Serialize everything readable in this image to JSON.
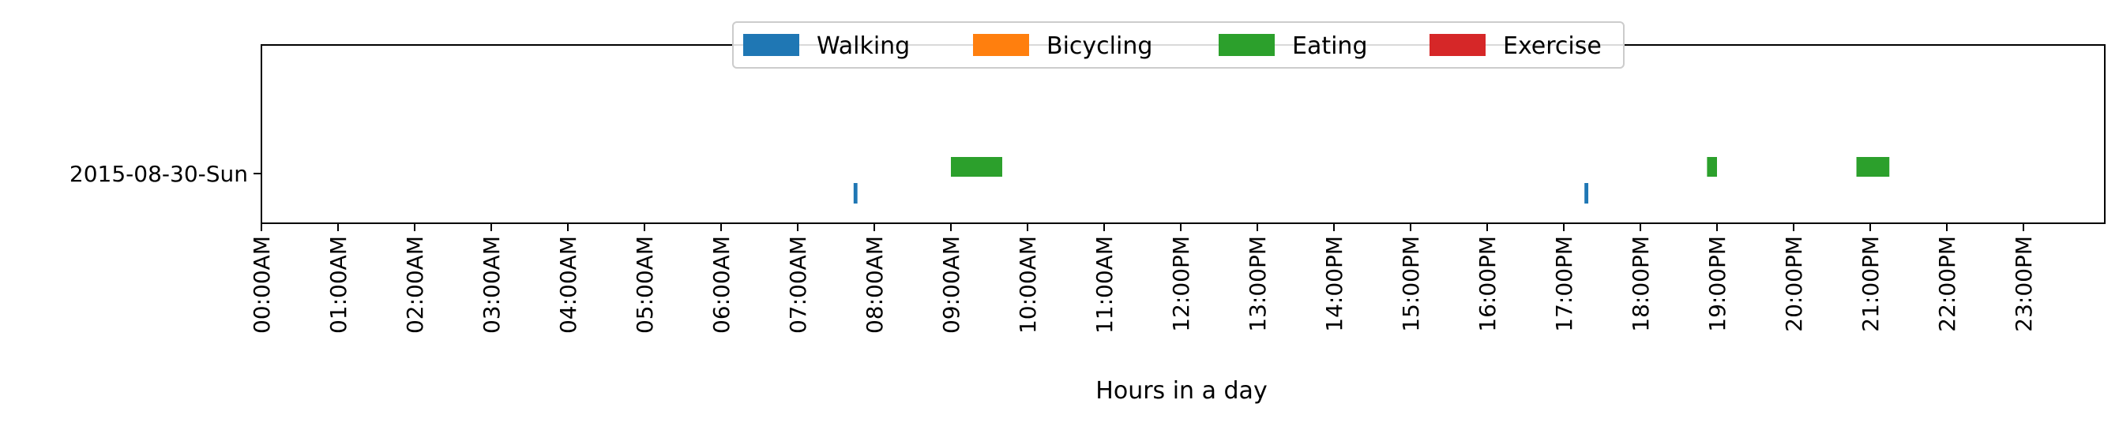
{
  "chart_data": {
    "type": "timeline",
    "xlabel": "Hours in a day",
    "xlim": [
      0,
      24
    ],
    "x_ticks": [
      {
        "value": 0,
        "label": "00:00AM"
      },
      {
        "value": 1,
        "label": "01:00AM"
      },
      {
        "value": 2,
        "label": "02:00AM"
      },
      {
        "value": 3,
        "label": "03:00AM"
      },
      {
        "value": 4,
        "label": "04:00AM"
      },
      {
        "value": 5,
        "label": "05:00AM"
      },
      {
        "value": 6,
        "label": "06:00AM"
      },
      {
        "value": 7,
        "label": "07:00AM"
      },
      {
        "value": 8,
        "label": "08:00AM"
      },
      {
        "value": 9,
        "label": "09:00AM"
      },
      {
        "value": 10,
        "label": "10:00AM"
      },
      {
        "value": 11,
        "label": "11:00AM"
      },
      {
        "value": 12,
        "label": "12:00PM"
      },
      {
        "value": 13,
        "label": "13:00PM"
      },
      {
        "value": 14,
        "label": "14:00PM"
      },
      {
        "value": 15,
        "label": "15:00PM"
      },
      {
        "value": 16,
        "label": "16:00PM"
      },
      {
        "value": 17,
        "label": "17:00PM"
      },
      {
        "value": 18,
        "label": "18:00PM"
      },
      {
        "value": 19,
        "label": "19:00PM"
      },
      {
        "value": 20,
        "label": "20:00PM"
      },
      {
        "value": 21,
        "label": "21:00PM"
      },
      {
        "value": 22,
        "label": "22:00PM"
      },
      {
        "value": 23,
        "label": "23:00PM"
      }
    ],
    "rows": [
      "2015-08-30-Sun"
    ],
    "legend_position": "top-center",
    "series": [
      {
        "name": "Walking",
        "color": "#1f77b4",
        "lane": "lower",
        "intervals": [
          {
            "row": "2015-08-30-Sun",
            "start": 7.73,
            "end": 7.78
          },
          {
            "row": "2015-08-30-Sun",
            "start": 17.27,
            "end": 17.32
          }
        ]
      },
      {
        "name": "Bicycling",
        "color": "#ff7f0e",
        "lane": "lower",
        "intervals": []
      },
      {
        "name": "Eating",
        "color": "#2ca02c",
        "lane": "upper",
        "intervals": [
          {
            "row": "2015-08-30-Sun",
            "start": 9.0,
            "end": 9.67
          },
          {
            "row": "2015-08-30-Sun",
            "start": 18.87,
            "end": 19.0
          },
          {
            "row": "2015-08-30-Sun",
            "start": 20.82,
            "end": 21.25
          }
        ]
      },
      {
        "name": "Exercise",
        "color": "#d62728",
        "lane": "upper",
        "intervals": []
      }
    ]
  }
}
